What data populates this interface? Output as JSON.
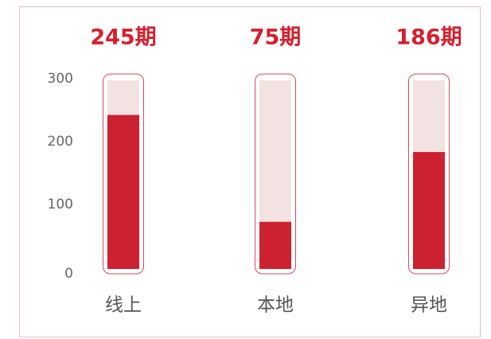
{
  "chart_data": {
    "type": "bar",
    "categories": [
      "线上",
      "本地",
      "异地"
    ],
    "values": [
      245,
      75,
      186
    ],
    "value_labels": [
      "245期",
      "75期",
      "186期"
    ],
    "color": "#cc2130",
    "ylim": [
      0,
      300
    ],
    "yticks": [
      0,
      100,
      200,
      300
    ],
    "grid": false
  }
}
